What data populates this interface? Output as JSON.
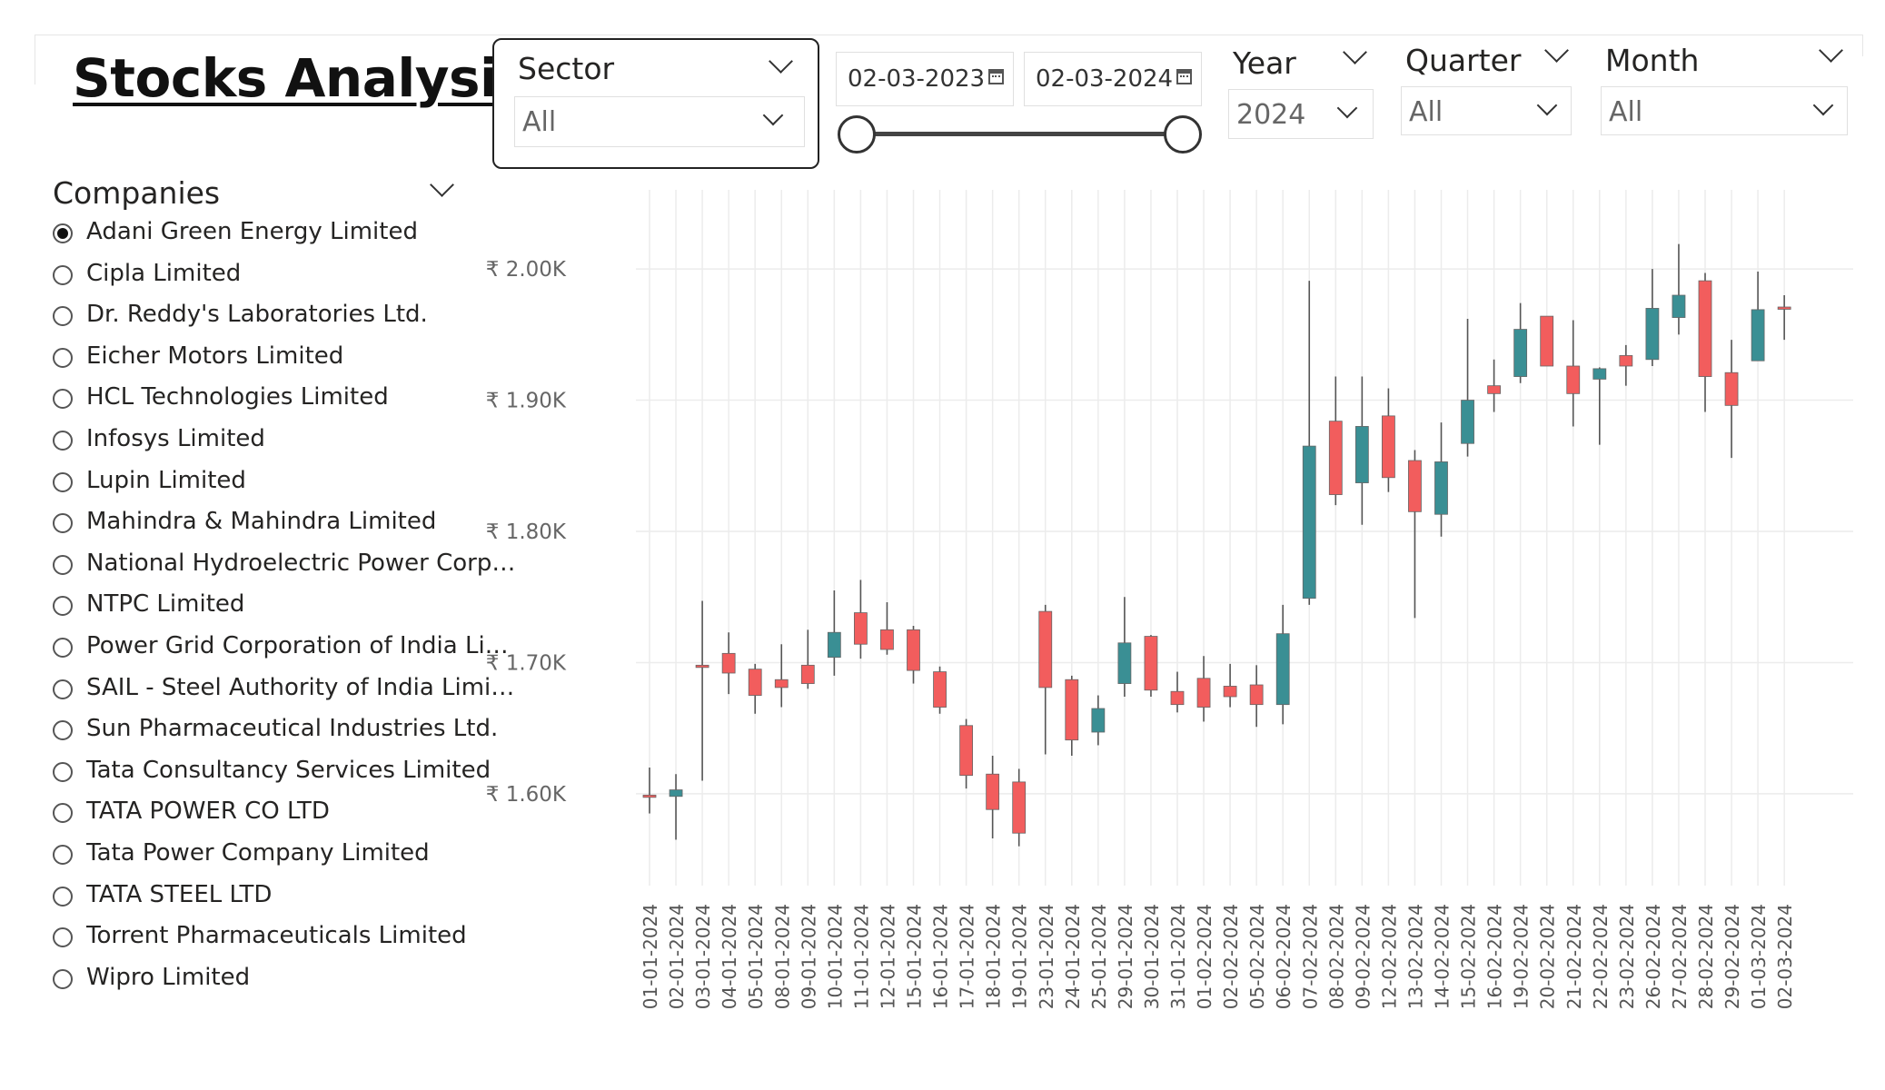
{
  "title": "Stocks Analysis",
  "filters": {
    "sector": {
      "label": "Sector",
      "value": "All"
    },
    "date_range": {
      "start": "02-03-2023",
      "end": "02-03-2024"
    },
    "year": {
      "label": "Year",
      "value": "2024"
    },
    "quarter": {
      "label": "Quarter",
      "value": "All"
    },
    "month": {
      "label": "Month",
      "value": "All"
    }
  },
  "companies": {
    "label": "Companies",
    "selected": 0,
    "items": [
      "Adani Green Energy Limited",
      "Cipla Limited",
      "Dr. Reddy's Laboratories Ltd.",
      "Eicher Motors Limited",
      "HCL Technologies Limited",
      "Infosys Limited",
      "Lupin Limited",
      "Mahindra & Mahindra Limited",
      "National Hydroelectric Power Corpo...",
      "NTPC Limited",
      "Power Grid Corporation of India Lim...",
      "SAIL - Steel Authority of India Limited",
      "Sun Pharmaceutical Industries Ltd.",
      "Tata Consultancy Services Limited",
      "TATA POWER CO LTD",
      "Tata Power Company Limited",
      "TATA STEEL LTD",
      "Torrent Pharmaceuticals Limited",
      "Wipro Limited"
    ]
  },
  "colors": {
    "up": "#3a8f94",
    "down": "#f25d5d",
    "grid": "#ececec"
  },
  "chart_data": {
    "type": "candlestick",
    "ylim": [
      1530,
      2070
    ],
    "yticks": [
      1600,
      1700,
      1800,
      1900,
      2000
    ],
    "ytick_labels": [
      "₹ 1.60K",
      "₹ 1.70K",
      "₹ 1.80K",
      "₹ 1.90K",
      "₹ 2.00K"
    ],
    "grid": true,
    "candles": [
      {
        "x": "01-01-2024",
        "open": 1599,
        "high": 1620,
        "low": 1585,
        "close": 1598
      },
      {
        "x": "02-01-2024",
        "open": 1598,
        "high": 1615,
        "low": 1565,
        "close": 1603
      },
      {
        "x": "03-01-2024",
        "open": 1698,
        "high": 1747,
        "low": 1610,
        "close": 1697
      },
      {
        "x": "04-01-2024",
        "open": 1707,
        "high": 1723,
        "low": 1676,
        "close": 1692
      },
      {
        "x": "05-01-2024",
        "open": 1695,
        "high": 1699,
        "low": 1661,
        "close": 1675
      },
      {
        "x": "08-01-2024",
        "open": 1687,
        "high": 1714,
        "low": 1666,
        "close": 1681
      },
      {
        "x": "09-01-2024",
        "open": 1698,
        "high": 1725,
        "low": 1680,
        "close": 1684
      },
      {
        "x": "10-01-2024",
        "open": 1704,
        "high": 1755,
        "low": 1690,
        "close": 1723
      },
      {
        "x": "11-01-2024",
        "open": 1738,
        "high": 1763,
        "low": 1703,
        "close": 1714
      },
      {
        "x": "12-01-2024",
        "open": 1725,
        "high": 1746,
        "low": 1706,
        "close": 1710
      },
      {
        "x": "15-01-2024",
        "open": 1725,
        "high": 1728,
        "low": 1684,
        "close": 1694
      },
      {
        "x": "16-01-2024",
        "open": 1693,
        "high": 1697,
        "low": 1661,
        "close": 1666
      },
      {
        "x": "17-01-2024",
        "open": 1652,
        "high": 1657,
        "low": 1604,
        "close": 1614
      },
      {
        "x": "18-01-2024",
        "open": 1615,
        "high": 1629,
        "low": 1566,
        "close": 1588
      },
      {
        "x": "19-01-2024",
        "open": 1609,
        "high": 1619,
        "low": 1560,
        "close": 1570
      },
      {
        "x": "23-01-2024",
        "open": 1739,
        "high": 1744,
        "low": 1630,
        "close": 1681
      },
      {
        "x": "24-01-2024",
        "open": 1687,
        "high": 1690,
        "low": 1629,
        "close": 1641
      },
      {
        "x": "25-01-2024",
        "open": 1647,
        "high": 1675,
        "low": 1637,
        "close": 1665
      },
      {
        "x": "29-01-2024",
        "open": 1684,
        "high": 1750,
        "low": 1674,
        "close": 1715
      },
      {
        "x": "30-01-2024",
        "open": 1720,
        "high": 1721,
        "low": 1674,
        "close": 1679
      },
      {
        "x": "31-01-2024",
        "open": 1678,
        "high": 1693,
        "low": 1662,
        "close": 1668
      },
      {
        "x": "01-02-2024",
        "open": 1688,
        "high": 1705,
        "low": 1655,
        "close": 1666
      },
      {
        "x": "02-02-2024",
        "open": 1682,
        "high": 1699,
        "low": 1666,
        "close": 1674
      },
      {
        "x": "05-02-2024",
        "open": 1683,
        "high": 1698,
        "low": 1651,
        "close": 1668
      },
      {
        "x": "06-02-2024",
        "open": 1668,
        "high": 1744,
        "low": 1653,
        "close": 1722
      },
      {
        "x": "07-02-2024",
        "open": 1749,
        "high": 1991,
        "low": 1744,
        "close": 1865
      },
      {
        "x": "08-02-2024",
        "open": 1884,
        "high": 1918,
        "low": 1820,
        "close": 1828
      },
      {
        "x": "09-02-2024",
        "open": 1837,
        "high": 1918,
        "low": 1805,
        "close": 1880
      },
      {
        "x": "12-02-2024",
        "open": 1888,
        "high": 1909,
        "low": 1830,
        "close": 1841
      },
      {
        "x": "13-02-2024",
        "open": 1854,
        "high": 1862,
        "low": 1734,
        "close": 1815
      },
      {
        "x": "14-02-2024",
        "open": 1813,
        "high": 1883,
        "low": 1796,
        "close": 1853
      },
      {
        "x": "15-02-2024",
        "open": 1867,
        "high": 1962,
        "low": 1857,
        "close": 1900
      },
      {
        "x": "16-02-2024",
        "open": 1911,
        "high": 1931,
        "low": 1891,
        "close": 1905
      },
      {
        "x": "19-02-2024",
        "open": 1918,
        "high": 1974,
        "low": 1913,
        "close": 1954
      },
      {
        "x": "20-02-2024",
        "open": 1964,
        "high": 1964,
        "low": 1926,
        "close": 1926
      },
      {
        "x": "21-02-2024",
        "open": 1926,
        "high": 1961,
        "low": 1880,
        "close": 1905
      },
      {
        "x": "22-02-2024",
        "open": 1916,
        "high": 1925,
        "low": 1866,
        "close": 1924
      },
      {
        "x": "23-02-2024",
        "open": 1934,
        "high": 1942,
        "low": 1911,
        "close": 1926
      },
      {
        "x": "26-02-2024",
        "open": 1931,
        "high": 2000,
        "low": 1926,
        "close": 1970
      },
      {
        "x": "27-02-2024",
        "open": 1963,
        "high": 2019,
        "low": 1950,
        "close": 1980
      },
      {
        "x": "28-02-2024",
        "open": 1991,
        "high": 1997,
        "low": 1891,
        "close": 1918
      },
      {
        "x": "29-02-2024",
        "open": 1921,
        "high": 1946,
        "low": 1856,
        "close": 1896
      },
      {
        "x": "01-03-2024",
        "open": 1930,
        "high": 1998,
        "low": 1930,
        "close": 1969
      },
      {
        "x": "02-03-2024",
        "open": 1971,
        "high": 1980,
        "low": 1946,
        "close": 1970
      }
    ]
  }
}
